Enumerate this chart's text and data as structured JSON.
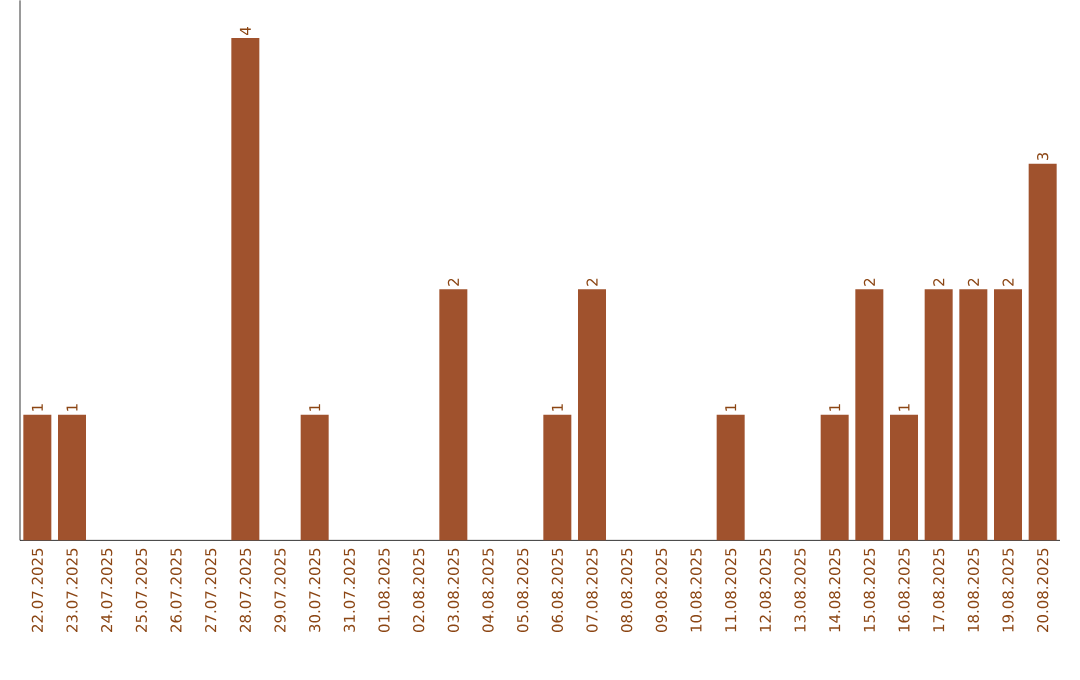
{
  "chart_data": {
    "type": "bar",
    "categories": [
      "22.07.2025",
      "23.07.2025",
      "24.07.2025",
      "25.07.2025",
      "26.07.2025",
      "27.07.2025",
      "28.07.2025",
      "29.07.2025",
      "30.07.2025",
      "31.07.2025",
      "01.08.2025",
      "02.08.2025",
      "03.08.2025",
      "04.08.2025",
      "05.08.2025",
      "06.08.2025",
      "07.08.2025",
      "08.08.2025",
      "09.08.2025",
      "10.08.2025",
      "11.08.2025",
      "12.08.2025",
      "13.08.2025",
      "14.08.2025",
      "15.08.2025",
      "16.08.2025",
      "17.08.2025",
      "18.08.2025",
      "19.08.2025",
      "20.08.2025"
    ],
    "values": [
      1,
      1,
      0,
      0,
      0,
      0,
      4,
      0,
      1,
      0,
      0,
      0,
      2,
      0,
      0,
      1,
      2,
      0,
      0,
      0,
      1,
      0,
      0,
      1,
      2,
      1,
      2,
      2,
      2,
      3
    ],
    "value_labels": [
      "1",
      "1",
      null,
      null,
      null,
      null,
      "4",
      null,
      "1",
      null,
      null,
      null,
      "2",
      null,
      null,
      "1",
      "2",
      null,
      null,
      null,
      "1",
      null,
      null,
      "1",
      "2",
      "1",
      "2",
      "2",
      "2",
      "3"
    ],
    "color": "#a0522d",
    "ylim": [
      0,
      4.3
    ],
    "tick_labels": "x"
  }
}
